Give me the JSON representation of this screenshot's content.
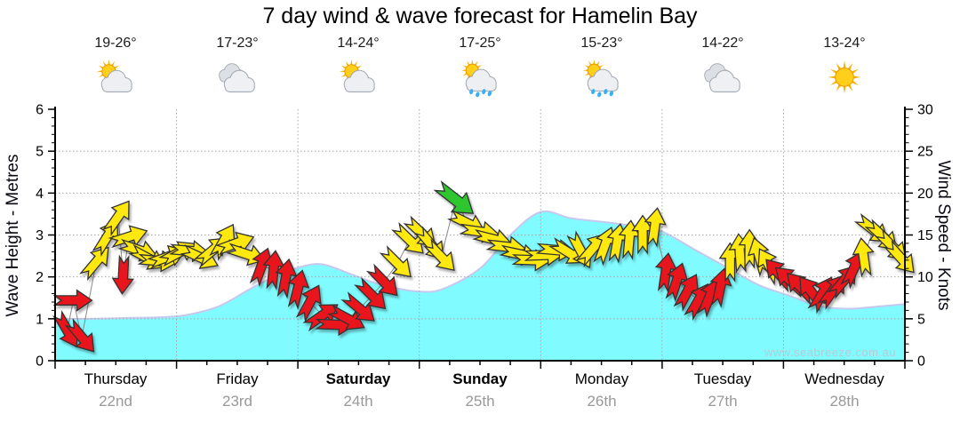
{
  "title": "7 day wind & wave forecast for Hamelin Bay",
  "watermark": "www.seabreeze.com.au",
  "forecast": {
    "days": [
      {
        "name": "Thursday",
        "date": "22nd",
        "temp": "19-26°",
        "icon": "partly-cloudy",
        "weekend": false
      },
      {
        "name": "Friday",
        "date": "23rd",
        "temp": "17-23°",
        "icon": "cloudy",
        "weekend": false
      },
      {
        "name": "Saturday",
        "date": "24th",
        "temp": "14-24°",
        "icon": "partly-cloudy",
        "weekend": true
      },
      {
        "name": "Sunday",
        "date": "25th",
        "temp": "17-25°",
        "icon": "showers",
        "weekend": true
      },
      {
        "name": "Monday",
        "date": "26th",
        "temp": "15-23°",
        "icon": "showers",
        "weekend": false
      },
      {
        "name": "Tuesday",
        "date": "27th",
        "temp": "14-22°",
        "icon": "cloudy",
        "weekend": false
      },
      {
        "name": "Wednesday",
        "date": "28th",
        "temp": "13-24°",
        "icon": "sunny",
        "weekend": false
      }
    ]
  },
  "chart_data": {
    "type": "area",
    "title": "7 day wind & wave forecast for Hamelin Bay",
    "left_axis": {
      "label": "Wave Height - Metres",
      "min": 0,
      "max": 6,
      "ticks": [
        0,
        1,
        2,
        3,
        4,
        5,
        6
      ]
    },
    "right_axis": {
      "label": "Wind Speed - Knots",
      "min": 0,
      "max": 30,
      "ticks": [
        0,
        5,
        10,
        15,
        20,
        25,
        30
      ]
    },
    "x_axis": {
      "days": [
        "Thursday",
        "Friday",
        "Saturday",
        "Sunday",
        "Monday",
        "Tuesday",
        "Wednesday"
      ],
      "grid_at_day_boundaries": true
    },
    "wave_height_m": {
      "x_days": [
        0,
        0.3,
        0.6,
        0.9,
        1.1,
        1.35,
        1.6,
        1.8,
        2.0,
        2.2,
        2.45,
        2.7,
        3.0,
        3.2,
        3.5,
        3.75,
        4.0,
        4.25,
        4.55,
        4.8,
        5.0,
        5.3,
        5.55,
        5.8,
        6.05,
        6.3,
        6.55,
        6.8,
        7.0
      ],
      "values": [
        1.0,
        1.0,
        1.02,
        1.04,
        1.1,
        1.3,
        1.7,
        2.0,
        2.22,
        2.3,
        2.05,
        1.8,
        1.65,
        1.72,
        2.2,
        3.0,
        3.55,
        3.4,
        3.3,
        3.2,
        3.08,
        2.6,
        2.2,
        1.8,
        1.55,
        1.3,
        1.24,
        1.3,
        1.35
      ]
    },
    "wind_arrows_comment": "each item: [day 0-7, knots, arrow-points-to direction deg (0=up,90=right), color key]",
    "wind_arrows": [
      [
        0.1,
        3.6,
        150,
        "r"
      ],
      [
        0.15,
        7.2,
        90,
        "r"
      ],
      [
        0.22,
        2.8,
        140,
        "r"
      ],
      [
        0.34,
        11.8,
        40,
        "y"
      ],
      [
        0.43,
        14.8,
        32,
        "y"
      ],
      [
        0.52,
        17.2,
        35,
        "y"
      ],
      [
        0.56,
        10.2,
        183,
        "r"
      ],
      [
        0.61,
        14.8,
        72,
        "y"
      ],
      [
        0.69,
        13.2,
        108,
        "y"
      ],
      [
        0.77,
        12.2,
        118,
        "y"
      ],
      [
        0.85,
        11.9,
        95,
        "y"
      ],
      [
        0.93,
        12.4,
        70,
        "y"
      ],
      [
        1.02,
        12.9,
        62,
        "y"
      ],
      [
        1.11,
        13.1,
        95,
        "y"
      ],
      [
        1.2,
        12.3,
        115,
        "y"
      ],
      [
        1.3,
        13.2,
        50,
        "y"
      ],
      [
        1.39,
        14.3,
        30,
        "y"
      ],
      [
        1.49,
        14.0,
        70,
        "y"
      ],
      [
        1.58,
        12.7,
        108,
        "y"
      ],
      [
        1.7,
        11.3,
        20,
        "r"
      ],
      [
        1.8,
        10.9,
        6,
        "r"
      ],
      [
        1.9,
        9.9,
        10,
        "r"
      ],
      [
        2.0,
        8.6,
        14,
        "r"
      ],
      [
        2.1,
        7.0,
        28,
        "r"
      ],
      [
        2.2,
        5.4,
        55,
        "r"
      ],
      [
        2.31,
        4.3,
        92,
        "r"
      ],
      [
        2.41,
        5.0,
        118,
        "r"
      ],
      [
        2.51,
        6.2,
        130,
        "r"
      ],
      [
        2.61,
        7.8,
        135,
        "r"
      ],
      [
        2.71,
        9.4,
        136,
        "r"
      ],
      [
        2.82,
        11.6,
        135,
        "y"
      ],
      [
        2.92,
        14.4,
        134,
        "y"
      ],
      [
        3.02,
        15.2,
        133,
        "y"
      ],
      [
        3.1,
        13.8,
        140,
        "y"
      ],
      [
        3.18,
        12.4,
        136,
        "y"
      ],
      [
        3.3,
        19.2,
        128,
        "g"
      ],
      [
        3.4,
        16.4,
        116,
        "y"
      ],
      [
        3.5,
        15.4,
        98,
        "y"
      ],
      [
        3.61,
        14.5,
        104,
        "y"
      ],
      [
        3.72,
        13.6,
        96,
        "y"
      ],
      [
        3.83,
        12.7,
        102,
        "y"
      ],
      [
        3.93,
        12.0,
        92,
        "y"
      ],
      [
        4.03,
        12.6,
        88,
        "y"
      ],
      [
        4.13,
        13.2,
        95,
        "y"
      ],
      [
        4.23,
        12.9,
        122,
        "y"
      ],
      [
        4.33,
        13.1,
        152,
        "y"
      ],
      [
        4.43,
        13.4,
        40,
        "y"
      ],
      [
        4.53,
        13.8,
        20,
        "y"
      ],
      [
        4.63,
        14.1,
        10,
        "y"
      ],
      [
        4.73,
        14.5,
        5,
        "y"
      ],
      [
        4.84,
        15.1,
        0,
        "y"
      ],
      [
        4.94,
        16.0,
        8,
        "y"
      ],
      [
        5.03,
        10.6,
        8,
        "r"
      ],
      [
        5.12,
        9.5,
        18,
        "r"
      ],
      [
        5.21,
        8.3,
        28,
        "r"
      ],
      [
        5.3,
        7.2,
        30,
        "r"
      ],
      [
        5.39,
        7.6,
        22,
        "r"
      ],
      [
        5.48,
        8.8,
        12,
        "r"
      ],
      [
        5.56,
        11.8,
        0,
        "y"
      ],
      [
        5.64,
        12.9,
        356,
        "y"
      ],
      [
        5.72,
        13.4,
        0,
        "y"
      ],
      [
        5.8,
        12.5,
        344,
        "y"
      ],
      [
        5.88,
        11.4,
        330,
        "y"
      ],
      [
        5.96,
        10.4,
        318,
        "r"
      ],
      [
        6.05,
        9.6,
        312,
        "r"
      ],
      [
        6.14,
        8.8,
        316,
        "r"
      ],
      [
        6.23,
        8.2,
        322,
        "r"
      ],
      [
        6.32,
        8.0,
        30,
        "r"
      ],
      [
        6.41,
        8.4,
        36,
        "r"
      ],
      [
        6.5,
        9.6,
        40,
        "r"
      ],
      [
        6.58,
        11.0,
        25,
        "r"
      ],
      [
        6.66,
        12.4,
        352,
        "y"
      ],
      [
        6.74,
        15.6,
        128,
        "y"
      ],
      [
        6.82,
        14.8,
        133,
        "y"
      ],
      [
        6.9,
        13.6,
        135,
        "y"
      ],
      [
        6.97,
        12.2,
        138,
        "y"
      ]
    ],
    "colors": {
      "wave_fill": "#80FBFF",
      "wave_edge": "#C5C9EF",
      "arrow_r": "#E8131B",
      "arrow_y": "#FFE80A",
      "arrow_g": "#2FC52F",
      "arrow_outline": "#333333",
      "grid": "#A8A8A8",
      "axis": "#000000",
      "connector": "#8a8a8a",
      "date_gray": "#999999"
    }
  }
}
